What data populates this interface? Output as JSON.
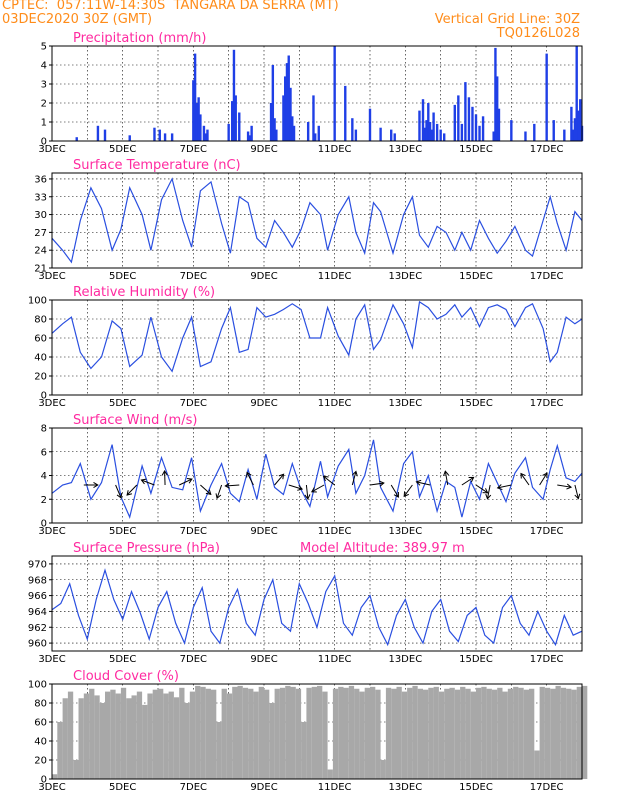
{
  "header": {
    "line1_left": "CPTEC:  057:11W-14:30S  TANGARA DA SERRA (MT)",
    "line2_left": "03DEC2020 30Z (GMT)",
    "line2_right": "Vertical Grid Line: 30Z",
    "line3_right": "TQ0126L028",
    "color": "#ff8c1a"
  },
  "chart_data": [
    {
      "type": "bar",
      "title": "Precipitation (mm/h)",
      "xlabels": [
        "3DEC",
        "5DEC",
        "7DEC",
        "9DEC",
        "11DEC",
        "13DEC",
        "15DEC",
        "17DEC"
      ],
      "ylim": [
        0,
        5
      ],
      "yticks": [
        0,
        1,
        2,
        3,
        4,
        5
      ],
      "x_days": [
        3.7,
        4.3,
        4.5,
        5.2,
        5.9,
        6.05,
        6.2,
        6.4,
        7.0,
        7.05,
        7.1,
        7.15,
        7.2,
        7.3,
        7.35,
        7.4,
        8.0,
        8.1,
        8.15,
        8.2,
        8.3,
        8.55,
        8.6,
        8.65,
        9.2,
        9.25,
        9.3,
        9.35,
        9.55,
        9.6,
        9.65,
        9.7,
        9.75,
        9.8,
        9.85,
        10.25,
        10.4,
        10.45,
        10.55,
        11.0,
        11.3,
        11.5,
        11.6,
        12.0,
        12.3,
        12.6,
        12.7,
        13.4,
        13.5,
        13.55,
        13.6,
        13.65,
        13.7,
        13.75,
        13.8,
        13.9,
        14.0,
        14.1,
        14.4,
        14.5,
        14.6,
        14.7,
        14.8,
        14.9,
        15.0,
        15.1,
        15.2,
        15.5,
        15.55,
        15.6,
        15.65,
        16.0,
        16.4,
        16.65,
        17.0,
        17.2,
        17.5,
        17.7,
        17.75,
        17.8,
        17.85,
        17.9,
        17.95,
        18.0
      ],
      "values": [
        0.2,
        0.8,
        0.6,
        0.3,
        0.7,
        0.6,
        0.4,
        0.4,
        3.2,
        4.6,
        2.0,
        2.3,
        1.4,
        0.8,
        0.4,
        0.6,
        0.9,
        2.1,
        4.8,
        2.4,
        1.5,
        0.5,
        0.3,
        0.8,
        2.0,
        4.0,
        1.2,
        0.6,
        2.4,
        3.4,
        4.1,
        4.5,
        2.8,
        1.3,
        0.8,
        1.0,
        2.4,
        0.4,
        0.8,
        5.0,
        2.9,
        1.2,
        0.6,
        1.7,
        0.7,
        0.6,
        0.4,
        1.6,
        2.2,
        0.7,
        1.1,
        2.0,
        1.0,
        0.6,
        1.5,
        0.9,
        0.6,
        0.4,
        1.9,
        2.4,
        0.9,
        3.1,
        2.3,
        1.8,
        1.4,
        0.8,
        1.3,
        0.5,
        4.9,
        3.4,
        1.7,
        1.1,
        0.5,
        0.9,
        4.6,
        1.1,
        0.6,
        1.8,
        0.6,
        1.2,
        5.0,
        1.6,
        2.2,
        0.8
      ]
    },
    {
      "type": "line",
      "title": "Surface Temperature (nC)",
      "xlabels": [
        "3DEC",
        "5DEC",
        "7DEC",
        "9DEC",
        "11DEC",
        "13DEC",
        "15DEC",
        "17DEC"
      ],
      "ylim": [
        21,
        37
      ],
      "yticks": [
        21,
        24,
        27,
        30,
        33,
        36
      ],
      "x_days": [
        3.0,
        3.3,
        3.55,
        3.8,
        4.1,
        4.4,
        4.7,
        4.95,
        5.2,
        5.55,
        5.8,
        6.1,
        6.4,
        6.7,
        6.95,
        7.2,
        7.5,
        7.8,
        8.05,
        8.3,
        8.55,
        8.8,
        9.05,
        9.3,
        9.55,
        9.8,
        10.05,
        10.3,
        10.6,
        10.8,
        11.1,
        11.4,
        11.6,
        11.85,
        12.1,
        12.3,
        12.65,
        12.95,
        13.2,
        13.4,
        13.65,
        13.9,
        14.15,
        14.4,
        14.6,
        14.85,
        15.1,
        15.35,
        15.6,
        15.85,
        16.1,
        16.4,
        16.6,
        16.9,
        17.1,
        17.3,
        17.55,
        17.8,
        18.0
      ],
      "values": [
        26.0,
        24.0,
        22.0,
        29.0,
        34.5,
        31.0,
        24.0,
        27.5,
        34.5,
        30.0,
        24.0,
        32.5,
        36.0,
        29.0,
        24.5,
        34.0,
        35.5,
        28.5,
        23.5,
        33.0,
        32.0,
        26.0,
        24.5,
        29.0,
        27.0,
        24.5,
        27.5,
        32.0,
        30.0,
        24.0,
        30.0,
        33.0,
        27.0,
        23.5,
        32.0,
        30.5,
        23.5,
        30.0,
        33.0,
        26.5,
        24.5,
        28.0,
        27.0,
        24.0,
        27.0,
        24.0,
        29.0,
        26.0,
        23.5,
        25.5,
        28.0,
        24.0,
        23.0,
        29.0,
        33.0,
        28.5,
        24.0,
        30.5,
        29.0
      ],
      "color": "#2a4fe0"
    },
    {
      "type": "line",
      "title": "Relative Humidity (%)",
      "xlabels": [
        "3DEC",
        "5DEC",
        "7DEC",
        "9DEC",
        "11DEC",
        "13DEC",
        "15DEC",
        "17DEC"
      ],
      "ylim": [
        0,
        100
      ],
      "yticks": [
        0,
        20,
        40,
        60,
        80,
        100
      ],
      "x_days": [
        3.0,
        3.3,
        3.55,
        3.8,
        4.1,
        4.4,
        4.7,
        4.95,
        5.2,
        5.55,
        5.8,
        6.1,
        6.4,
        6.7,
        6.95,
        7.2,
        7.5,
        7.8,
        8.05,
        8.3,
        8.55,
        8.8,
        9.05,
        9.3,
        9.55,
        9.8,
        10.05,
        10.3,
        10.6,
        10.8,
        11.1,
        11.4,
        11.6,
        11.85,
        12.1,
        12.3,
        12.65,
        12.95,
        13.2,
        13.4,
        13.65,
        13.9,
        14.15,
        14.4,
        14.6,
        14.85,
        15.1,
        15.35,
        15.6,
        15.85,
        16.1,
        16.4,
        16.6,
        16.9,
        17.1,
        17.3,
        17.55,
        17.8,
        18.0
      ],
      "values": [
        65,
        75,
        82,
        45,
        28,
        40,
        78,
        70,
        30,
        42,
        82,
        40,
        25,
        60,
        82,
        30,
        35,
        70,
        92,
        45,
        48,
        92,
        82,
        85,
        90,
        96,
        90,
        60,
        60,
        92,
        62,
        42,
        80,
        95,
        48,
        58,
        95,
        75,
        50,
        98,
        92,
        80,
        85,
        95,
        82,
        92,
        72,
        92,
        95,
        90,
        72,
        92,
        96,
        70,
        35,
        45,
        82,
        75,
        80
      ],
      "color": "#2a4fe0"
    },
    {
      "type": "line",
      "title": "Surface Wind (m/s)",
      "xlabels": [
        "3DEC",
        "5DEC",
        "7DEC",
        "9DEC",
        "11DEC",
        "13DEC",
        "15DEC",
        "17DEC"
      ],
      "ylim": [
        0,
        8
      ],
      "yticks": [
        0,
        2,
        4,
        6,
        8
      ],
      "x_days": [
        3.0,
        3.3,
        3.55,
        3.8,
        4.1,
        4.4,
        4.7,
        4.95,
        5.2,
        5.55,
        5.8,
        6.1,
        6.4,
        6.7,
        6.95,
        7.2,
        7.5,
        7.8,
        8.05,
        8.3,
        8.55,
        8.8,
        9.05,
        9.3,
        9.55,
        9.8,
        10.05,
        10.3,
        10.6,
        10.8,
        11.1,
        11.4,
        11.6,
        11.85,
        12.1,
        12.3,
        12.65,
        12.95,
        13.2,
        13.4,
        13.65,
        13.9,
        14.15,
        14.4,
        14.6,
        14.85,
        15.1,
        15.35,
        15.6,
        15.85,
        16.1,
        16.4,
        16.6,
        16.9,
        17.1,
        17.3,
        17.55,
        17.8,
        18.0
      ],
      "values": [
        2.5,
        3.2,
        3.4,
        5.0,
        2.0,
        3.4,
        6.6,
        2.2,
        0.5,
        4.8,
        2.5,
        5.5,
        3.0,
        2.8,
        5.5,
        1.0,
        3.2,
        5.0,
        2.5,
        1.8,
        4.5,
        2.0,
        5.8,
        3.0,
        2.4,
        5.0,
        2.8,
        1.4,
        5.2,
        2.2,
        4.8,
        6.2,
        2.5,
        4.0,
        7.0,
        3.0,
        1.0,
        5.0,
        6.0,
        2.2,
        4.0,
        1.0,
        3.5,
        3.0,
        0.5,
        3.5,
        2.0,
        5.0,
        3.4,
        1.8,
        4.2,
        5.5,
        3.0,
        2.0,
        4.5,
        6.5,
        3.8,
        3.5,
        4.2
      ],
      "vectors_x_days": [
        3.9,
        4.8,
        5.4,
        5.9,
        6.2,
        6.6,
        7.2,
        7.8,
        8.3,
        8.7,
        9.3,
        9.7,
        10.2,
        10.7,
        11.0,
        11.5,
        12.0,
        12.6,
        13.2,
        13.7,
        14.2,
        14.6,
        15.0,
        15.4,
        16.0,
        16.5,
        16.8,
        17.3,
        17.8
      ],
      "color": "#2a4fe0"
    },
    {
      "type": "line",
      "title": "Surface Pressure (hPa)",
      "subtitle": "Model Altitude: 389.97 m",
      "xlabels": [
        "3DEC",
        "5DEC",
        "7DEC",
        "9DEC",
        "11DEC",
        "13DEC",
        "15DEC",
        "17DEC"
      ],
      "ylim": [
        959,
        971
      ],
      "yticks": [
        960,
        962,
        964,
        966,
        968,
        970
      ],
      "x_days": [
        3.0,
        3.25,
        3.5,
        3.75,
        4.0,
        4.25,
        4.5,
        4.75,
        5.0,
        5.25,
        5.5,
        5.75,
        6.0,
        6.25,
        6.5,
        6.75,
        7.0,
        7.25,
        7.5,
        7.75,
        8.0,
        8.25,
        8.5,
        8.75,
        9.0,
        9.25,
        9.5,
        9.75,
        10.0,
        10.25,
        10.5,
        10.75,
        11.0,
        11.25,
        11.5,
        11.75,
        12.0,
        12.25,
        12.5,
        12.75,
        13.0,
        13.25,
        13.5,
        13.75,
        14.0,
        14.25,
        14.5,
        14.75,
        15.0,
        15.25,
        15.5,
        15.75,
        16.0,
        16.25,
        16.5,
        16.75,
        17.0,
        17.25,
        17.5,
        17.75,
        18.0
      ],
      "values": [
        964.2,
        965.0,
        967.5,
        963.5,
        960.5,
        965.5,
        969.2,
        965.5,
        963.0,
        966.5,
        963.8,
        960.5,
        964.5,
        966.5,
        962.5,
        960.0,
        964.5,
        967.0,
        961.5,
        960.0,
        964.5,
        966.8,
        962.5,
        961.0,
        965.5,
        968.0,
        962.5,
        961.5,
        967.5,
        965.0,
        962.0,
        966.5,
        968.5,
        962.5,
        961.0,
        964.5,
        966.0,
        962.0,
        959.8,
        963.5,
        965.5,
        962.0,
        960.0,
        964.0,
        965.5,
        961.5,
        960.2,
        963.5,
        964.5,
        961.0,
        960.0,
        964.5,
        966.0,
        962.5,
        961.0,
        964.0,
        961.5,
        959.8,
        963.5,
        961.0,
        961.5
      ],
      "color": "#2a4fe0"
    },
    {
      "type": "bar",
      "title": "Cloud Cover (%)",
      "xlabels": [
        "3DEC",
        "5DEC",
        "7DEC",
        "9DEC",
        "11DEC",
        "13DEC",
        "15DEC",
        "17DEC"
      ],
      "ylim": [
        0,
        100
      ],
      "yticks": [
        0,
        20,
        40,
        60,
        80,
        100
      ],
      "x_days": [
        3.0,
        3.15,
        3.3,
        3.45,
        3.6,
        3.75,
        3.9,
        4.05,
        4.2,
        4.35,
        4.5,
        4.65,
        4.8,
        4.95,
        5.1,
        5.25,
        5.4,
        5.55,
        5.7,
        5.85,
        6.0,
        6.15,
        6.3,
        6.45,
        6.6,
        6.75,
        6.9,
        7.05,
        7.2,
        7.35,
        7.5,
        7.65,
        7.8,
        7.95,
        8.1,
        8.25,
        8.4,
        8.55,
        8.7,
        8.85,
        9.0,
        9.15,
        9.3,
        9.45,
        9.6,
        9.75,
        9.9,
        10.05,
        10.2,
        10.35,
        10.5,
        10.65,
        10.8,
        10.95,
        11.1,
        11.25,
        11.4,
        11.55,
        11.7,
        11.85,
        12.0,
        12.15,
        12.3,
        12.45,
        12.6,
        12.75,
        12.9,
        13.05,
        13.2,
        13.35,
        13.5,
        13.65,
        13.8,
        13.95,
        14.1,
        14.25,
        14.4,
        14.55,
        14.7,
        14.85,
        15.0,
        15.15,
        15.3,
        15.45,
        15.6,
        15.75,
        15.9,
        16.05,
        16.2,
        16.35,
        16.5,
        16.65,
        16.8,
        16.95,
        17.1,
        17.25,
        17.4,
        17.55,
        17.7,
        17.85,
        18.0
      ],
      "values": [
        5,
        60,
        85,
        92,
        20,
        85,
        90,
        95,
        88,
        80,
        92,
        94,
        90,
        96,
        85,
        88,
        92,
        78,
        90,
        94,
        95,
        90,
        92,
        86,
        96,
        80,
        92,
        98,
        97,
        95,
        94,
        60,
        95,
        90,
        97,
        98,
        96,
        95,
        92,
        97,
        94,
        80,
        95,
        96,
        98,
        97,
        95,
        60,
        96,
        97,
        98,
        92,
        10,
        95,
        97,
        96,
        98,
        95,
        92,
        96,
        97,
        94,
        20,
        96,
        95,
        97,
        92,
        96,
        98,
        95,
        94,
        96,
        97,
        92,
        95,
        96,
        94,
        97,
        95,
        92,
        96,
        97,
        95,
        94,
        96,
        92,
        95,
        97,
        96,
        94,
        95,
        30,
        97,
        96,
        95,
        98,
        96,
        95,
        94,
        97,
        98
      ],
      "color": "#a8a8a8"
    }
  ]
}
